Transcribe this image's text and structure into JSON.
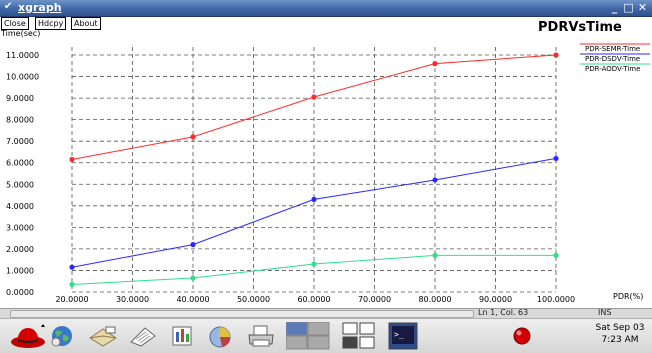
{
  "window": {
    "title": "xgraph"
  },
  "toolbar": {
    "close_label": "Close",
    "hdcpy_label": "Hdcpy",
    "about_label": "About"
  },
  "chart_data": {
    "type": "line",
    "title": "PDRVsTime",
    "xlabel": "PDR(%)",
    "ylabel": "Time(sec)",
    "x": [
      20,
      40,
      60,
      80,
      100
    ],
    "xlim": [
      20,
      100
    ],
    "ylim": [
      0,
      11
    ],
    "xticks": [
      "20.0000",
      "30.0000",
      "40.0000",
      "50.0000",
      "60.0000",
      "70.0000",
      "80.0000",
      "90.0000",
      "100.0000"
    ],
    "yticks": [
      "0.0000",
      "1.0000",
      "2.0000",
      "3.0000",
      "4.0000",
      "5.0000",
      "6.0000",
      "7.0000",
      "8.0000",
      "9.0000",
      "10.0000",
      "11.0000"
    ],
    "grid": true,
    "legend_position": "top-right",
    "series": [
      {
        "name": "PDR-SEMR-Time",
        "color": "#ff2a2a",
        "values": [
          6.15,
          7.2,
          9.05,
          10.6,
          11.0
        ]
      },
      {
        "name": "PDR-DSDV-Time",
        "color": "#2a2aff",
        "values": [
          1.15,
          2.2,
          4.3,
          5.2,
          6.2
        ]
      },
      {
        "name": "PDR-AODV-Time",
        "color": "#2ee08a",
        "values": [
          0.35,
          0.65,
          1.3,
          1.7,
          1.7
        ]
      }
    ]
  },
  "statusbar": {
    "position": "Ln 1, Col. 63",
    "mode": "INS"
  },
  "taskbar": {
    "icons": [
      "redhat-icon",
      "browser-globe-icon",
      "mail-icon",
      "writer-icon",
      "presentation-icon",
      "spreadsheet-icon",
      "printer-icon",
      "workspace-switcher-icon",
      "window-list-icon",
      "terminal-icon",
      "update-alert-icon"
    ],
    "clock_date": "Sat Sep 03",
    "clock_time": "7:23 AM"
  }
}
